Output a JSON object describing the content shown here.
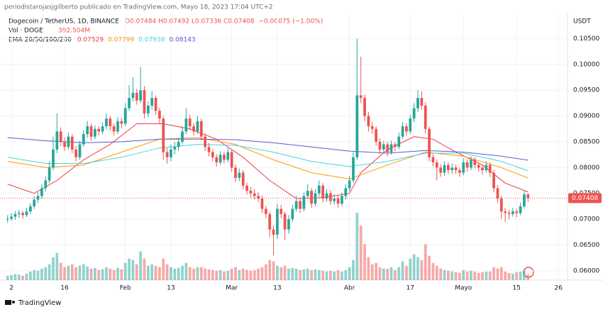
{
  "header": {
    "publisher": "periodistarojasjgilberto publicado en TradingView.com, Mayo 18, 2023 17:04 UTC+2"
  },
  "footer": {
    "brand": "TradingView"
  },
  "chart_data": {
    "type": "candlestick",
    "title": "Dogecoin / TetherUS, 1D, BINANCE",
    "ohlc_label": "O0.07484 H0.07492 L0.07336 C0.07408",
    "change_label": "−0.00075 (−1.00%)",
    "y_unit": "USDT",
    "up_color": "#26a69a",
    "down_color": "#ef5350",
    "x": [
      0,
      1,
      2,
      3,
      4,
      5,
      6,
      7,
      8,
      9,
      10,
      11,
      12,
      13,
      14,
      15,
      16,
      17,
      18,
      19,
      20,
      21,
      22,
      23,
      24,
      25,
      26,
      27,
      28,
      29,
      30,
      31,
      32,
      33,
      34,
      35,
      36,
      37,
      38,
      39,
      40,
      41,
      42,
      43,
      44,
      45,
      46,
      47,
      48,
      49,
      50,
      51,
      52,
      53,
      54,
      55,
      56,
      57,
      58,
      59,
      60,
      61,
      62,
      63,
      64,
      65,
      66,
      67,
      68,
      69,
      70,
      71,
      72,
      73,
      74,
      75,
      76,
      77,
      78,
      79,
      80,
      81,
      82,
      83,
      84,
      85,
      86,
      87,
      88,
      89,
      90,
      91,
      92,
      93,
      94,
      95,
      96,
      97,
      98,
      99,
      100,
      101,
      102,
      103,
      104,
      105,
      106,
      107,
      108,
      109,
      110,
      111,
      112,
      113,
      114,
      115,
      116,
      117,
      118,
      119,
      120,
      121,
      122,
      123,
      124,
      125,
      126,
      127,
      128,
      129,
      130,
      131,
      132,
      133,
      134,
      135,
      136,
      137
    ],
    "candles": [
      [
        0.07,
        0.0708,
        0.0693,
        0.0701
      ],
      [
        0.0701,
        0.0712,
        0.0697,
        0.0705
      ],
      [
        0.0705,
        0.0716,
        0.0699,
        0.071
      ],
      [
        0.071,
        0.0718,
        0.0703,
        0.0712
      ],
      [
        0.0712,
        0.0716,
        0.0701,
        0.0708
      ],
      [
        0.0708,
        0.0722,
        0.0704,
        0.0715
      ],
      [
        0.0715,
        0.0731,
        0.071,
        0.0725
      ],
      [
        0.0725,
        0.0744,
        0.072,
        0.0738
      ],
      [
        0.0738,
        0.0752,
        0.0732,
        0.0745
      ],
      [
        0.0745,
        0.0768,
        0.074,
        0.076
      ],
      [
        0.076,
        0.0783,
        0.0754,
        0.0775
      ],
      [
        0.0775,
        0.0812,
        0.077,
        0.08
      ],
      [
        0.08,
        0.086,
        0.0795,
        0.0835
      ],
      [
        0.0835,
        0.0905,
        0.0828,
        0.087
      ],
      [
        0.087,
        0.0878,
        0.0842,
        0.085
      ],
      [
        0.085,
        0.0858,
        0.0832,
        0.084
      ],
      [
        0.084,
        0.0868,
        0.0835,
        0.086
      ],
      [
        0.086,
        0.0865,
        0.0828,
        0.0835
      ],
      [
        0.0835,
        0.0842,
        0.0812,
        0.082
      ],
      [
        0.082,
        0.0852,
        0.0815,
        0.0845
      ],
      [
        0.0845,
        0.0873,
        0.084,
        0.0865
      ],
      [
        0.0865,
        0.089,
        0.0858,
        0.088
      ],
      [
        0.088,
        0.0885,
        0.0852,
        0.086
      ],
      [
        0.086,
        0.0882,
        0.0855,
        0.0875
      ],
      [
        0.0875,
        0.088,
        0.0862,
        0.087
      ],
      [
        0.087,
        0.0888,
        0.0865,
        0.088
      ],
      [
        0.088,
        0.0905,
        0.0874,
        0.0895
      ],
      [
        0.0895,
        0.09,
        0.0872,
        0.088
      ],
      [
        0.088,
        0.0886,
        0.0862,
        0.087
      ],
      [
        0.087,
        0.0898,
        0.0865,
        0.089
      ],
      [
        0.089,
        0.0896,
        0.0876,
        0.0885
      ],
      [
        0.0885,
        0.0925,
        0.088,
        0.0915
      ],
      [
        0.0915,
        0.096,
        0.091,
        0.0935
      ],
      [
        0.0935,
        0.0975,
        0.0928,
        0.0945
      ],
      [
        0.0945,
        0.0952,
        0.0922,
        0.093
      ],
      [
        0.093,
        0.0995,
        0.0925,
        0.095
      ],
      [
        0.095,
        0.0958,
        0.0895,
        0.0905
      ],
      [
        0.0905,
        0.0928,
        0.0898,
        0.092
      ],
      [
        0.092,
        0.0948,
        0.0912,
        0.0935
      ],
      [
        0.0935,
        0.094,
        0.0902,
        0.091
      ],
      [
        0.091,
        0.0916,
        0.0885,
        0.0895
      ],
      [
        0.0895,
        0.09,
        0.0815,
        0.083
      ],
      [
        0.083,
        0.0838,
        0.0808,
        0.082
      ],
      [
        0.082,
        0.0845,
        0.0812,
        0.0835
      ],
      [
        0.0835,
        0.085,
        0.0826,
        0.084
      ],
      [
        0.084,
        0.0858,
        0.0832,
        0.085
      ],
      [
        0.085,
        0.088,
        0.0845,
        0.087
      ],
      [
        0.087,
        0.0915,
        0.0865,
        0.0895
      ],
      [
        0.0895,
        0.0902,
        0.0872,
        0.088
      ],
      [
        0.088,
        0.0886,
        0.0862,
        0.087
      ],
      [
        0.087,
        0.09,
        0.0865,
        0.089
      ],
      [
        0.089,
        0.0895,
        0.0852,
        0.086
      ],
      [
        0.086,
        0.0866,
        0.0832,
        0.084
      ],
      [
        0.084,
        0.0848,
        0.0822,
        0.083
      ],
      [
        0.083,
        0.0836,
        0.0812,
        0.082
      ],
      [
        0.082,
        0.0826,
        0.0802,
        0.081
      ],
      [
        0.081,
        0.0832,
        0.0805,
        0.0825
      ],
      [
        0.0825,
        0.083,
        0.0808,
        0.0815
      ],
      [
        0.0815,
        0.0838,
        0.081,
        0.083
      ],
      [
        0.083,
        0.0835,
        0.0792,
        0.08
      ],
      [
        0.08,
        0.0806,
        0.0772,
        0.078
      ],
      [
        0.078,
        0.0798,
        0.0774,
        0.079
      ],
      [
        0.079,
        0.0795,
        0.0758,
        0.0765
      ],
      [
        0.0765,
        0.077,
        0.0748,
        0.0755
      ],
      [
        0.0755,
        0.0762,
        0.0742,
        0.075
      ],
      [
        0.075,
        0.0758,
        0.0738,
        0.0745
      ],
      [
        0.0745,
        0.0752,
        0.0733,
        0.074
      ],
      [
        0.074,
        0.0746,
        0.0712,
        0.072
      ],
      [
        0.072,
        0.0726,
        0.0702,
        0.071
      ],
      [
        0.071,
        0.0715,
        0.0665,
        0.068
      ],
      [
        0.068,
        0.0688,
        0.063,
        0.067
      ],
      [
        0.067,
        0.073,
        0.0662,
        0.072
      ],
      [
        0.072,
        0.0728,
        0.0702,
        0.071
      ],
      [
        0.071,
        0.0715,
        0.066,
        0.068
      ],
      [
        0.068,
        0.0708,
        0.0672,
        0.07
      ],
      [
        0.07,
        0.0728,
        0.0694,
        0.072
      ],
      [
        0.072,
        0.0745,
        0.0714,
        0.0735
      ],
      [
        0.0735,
        0.074,
        0.0712,
        0.072
      ],
      [
        0.072,
        0.0752,
        0.0715,
        0.0745
      ],
      [
        0.0745,
        0.0768,
        0.074,
        0.0755
      ],
      [
        0.0755,
        0.076,
        0.0722,
        0.073
      ],
      [
        0.073,
        0.0758,
        0.0725,
        0.075
      ],
      [
        0.075,
        0.0775,
        0.0744,
        0.0765
      ],
      [
        0.0765,
        0.077,
        0.0732,
        0.074
      ],
      [
        0.074,
        0.0758,
        0.0734,
        0.075
      ],
      [
        0.075,
        0.0756,
        0.0728,
        0.0735
      ],
      [
        0.0735,
        0.0748,
        0.0728,
        0.074
      ],
      [
        0.074,
        0.0746,
        0.0722,
        0.073
      ],
      [
        0.073,
        0.0752,
        0.0725,
        0.0745
      ],
      [
        0.0745,
        0.0768,
        0.0738,
        0.076
      ],
      [
        0.076,
        0.0784,
        0.0754,
        0.0775
      ],
      [
        0.0775,
        0.083,
        0.077,
        0.082
      ],
      [
        0.082,
        0.105,
        0.0815,
        0.094
      ],
      [
        0.094,
        0.1015,
        0.0925,
        0.0935
      ],
      [
        0.0935,
        0.0942,
        0.089,
        0.09
      ],
      [
        0.09,
        0.0908,
        0.087,
        0.088
      ],
      [
        0.088,
        0.0888,
        0.0866,
        0.0875
      ],
      [
        0.0875,
        0.088,
        0.0842,
        0.085
      ],
      [
        0.085,
        0.0856,
        0.0826,
        0.0835
      ],
      [
        0.0835,
        0.0852,
        0.0828,
        0.0845
      ],
      [
        0.0845,
        0.085,
        0.0822,
        0.083
      ],
      [
        0.083,
        0.0852,
        0.0825,
        0.0845
      ],
      [
        0.0845,
        0.085,
        0.0832,
        0.084
      ],
      [
        0.084,
        0.0868,
        0.0835,
        0.086
      ],
      [
        0.086,
        0.0888,
        0.0855,
        0.088
      ],
      [
        0.088,
        0.0886,
        0.0862,
        0.087
      ],
      [
        0.087,
        0.0902,
        0.0865,
        0.0895
      ],
      [
        0.0895,
        0.0925,
        0.0888,
        0.0915
      ],
      [
        0.0915,
        0.095,
        0.0908,
        0.0935
      ],
      [
        0.0935,
        0.0948,
        0.0912,
        0.092
      ],
      [
        0.092,
        0.0926,
        0.0866,
        0.0875
      ],
      [
        0.0875,
        0.088,
        0.0812,
        0.082
      ],
      [
        0.082,
        0.0826,
        0.0802,
        0.081
      ],
      [
        0.081,
        0.0816,
        0.0775,
        0.08
      ],
      [
        0.08,
        0.0806,
        0.0782,
        0.079
      ],
      [
        0.079,
        0.0812,
        0.0784,
        0.0805
      ],
      [
        0.0805,
        0.081,
        0.0787,
        0.0795
      ],
      [
        0.0795,
        0.0808,
        0.0788,
        0.08
      ],
      [
        0.08,
        0.0806,
        0.0788,
        0.0795
      ],
      [
        0.0795,
        0.08,
        0.0782,
        0.079
      ],
      [
        0.079,
        0.0818,
        0.0785,
        0.081
      ],
      [
        0.081,
        0.0815,
        0.0792,
        0.08
      ],
      [
        0.08,
        0.0822,
        0.0795,
        0.0815
      ],
      [
        0.0815,
        0.082,
        0.0798,
        0.0805
      ],
      [
        0.0805,
        0.081,
        0.0792,
        0.08
      ],
      [
        0.08,
        0.0806,
        0.0786,
        0.0795
      ],
      [
        0.0795,
        0.0812,
        0.079,
        0.0805
      ],
      [
        0.0805,
        0.081,
        0.0782,
        0.079
      ],
      [
        0.079,
        0.0796,
        0.0752,
        0.076
      ],
      [
        0.076,
        0.0766,
        0.0732,
        0.074
      ],
      [
        0.074,
        0.0746,
        0.07,
        0.0715
      ],
      [
        0.0715,
        0.0722,
        0.0695,
        0.0712
      ],
      [
        0.0712,
        0.0718,
        0.07,
        0.071
      ],
      [
        0.071,
        0.0722,
        0.0705,
        0.0715
      ],
      [
        0.0715,
        0.072,
        0.0704,
        0.0712
      ],
      [
        0.0712,
        0.0732,
        0.0708,
        0.0725
      ],
      [
        0.0725,
        0.0755,
        0.072,
        0.0748
      ],
      [
        0.07484,
        0.07492,
        0.07336,
        0.07408
      ]
    ],
    "volume": {
      "label": "Vol · DOGE",
      "value_label": "392.504M",
      "values": [
        300,
        350,
        420,
        380,
        300,
        450,
        600,
        700,
        650,
        800,
        900,
        1100,
        1600,
        1900,
        1200,
        900,
        1000,
        1100,
        900,
        1000,
        1100,
        950,
        800,
        850,
        700,
        750,
        900,
        800,
        700,
        850,
        750,
        1200,
        1500,
        1400,
        1100,
        2000,
        1500,
        1000,
        1100,
        1000,
        900,
        1500,
        1100,
        900,
        800,
        850,
        1000,
        1200,
        900,
        800,
        900,
        900,
        800,
        750,
        700,
        650,
        700,
        600,
        650,
        800,
        900,
        700,
        800,
        700,
        650,
        700,
        800,
        900,
        1100,
        1400,
        1300,
        1000,
        900,
        1000,
        800,
        850,
        800,
        700,
        750,
        800,
        700,
        750,
        700,
        650,
        600,
        650,
        600,
        700,
        600,
        700,
        900,
        1400,
        4700,
        3800,
        2500,
        1600,
        1100,
        1200,
        900,
        800,
        800,
        900,
        700,
        900,
        1300,
        1000,
        1500,
        1800,
        1600,
        1400,
        2500,
        1700,
        1200,
        1000,
        800,
        700,
        650,
        600,
        550,
        500,
        700,
        600,
        650,
        600,
        500,
        550,
        600,
        600,
        900,
        800,
        900,
        600,
        500,
        450,
        550,
        600,
        700,
        392.504
      ]
    },
    "ema_label": "EMA 20/50/100/200",
    "ema": [
      {
        "color": "#f23645",
        "legend_value": "0.07529",
        "x": [
          0,
          7,
          13,
          20,
          27,
          34,
          41,
          48,
          55,
          62,
          69,
          76,
          83,
          90,
          93,
          100,
          107,
          112,
          118,
          125,
          131,
          137
        ],
        "values": [
          0.0768,
          0.075,
          0.0775,
          0.0815,
          0.0845,
          0.0885,
          0.0885,
          0.0875,
          0.0855,
          0.082,
          0.0775,
          0.074,
          0.0742,
          0.075,
          0.079,
          0.0835,
          0.086,
          0.0855,
          0.083,
          0.0805,
          0.077,
          0.07529
        ]
      },
      {
        "color": "#ff9800",
        "legend_value": "0.07799",
        "x": [
          0,
          10,
          20,
          30,
          40,
          50,
          60,
          70,
          80,
          90,
          100,
          110,
          120,
          130,
          137
        ],
        "values": [
          0.0812,
          0.08,
          0.0805,
          0.083,
          0.0855,
          0.0858,
          0.0845,
          0.0815,
          0.079,
          0.0778,
          0.0805,
          0.083,
          0.0822,
          0.08,
          0.07799
        ]
      },
      {
        "color": "#4dd0e1",
        "legend_value": "0.07938",
        "x": [
          0,
          10,
          20,
          30,
          40,
          50,
          60,
          70,
          80,
          90,
          100,
          110,
          120,
          130,
          137
        ],
        "values": [
          0.082,
          0.0808,
          0.0808,
          0.082,
          0.0838,
          0.0845,
          0.0843,
          0.083,
          0.0812,
          0.0802,
          0.0812,
          0.0828,
          0.0828,
          0.0812,
          0.07938
        ]
      },
      {
        "color": "#5b5bd6",
        "legend_value": "0.08143",
        "x": [
          0,
          10,
          20,
          30,
          40,
          50,
          60,
          70,
          80,
          90,
          100,
          110,
          120,
          130,
          137
        ],
        "values": [
          0.0858,
          0.0852,
          0.0848,
          0.085,
          0.0855,
          0.0855,
          0.0854,
          0.0848,
          0.084,
          0.0832,
          0.0828,
          0.0833,
          0.083,
          0.0822,
          0.08143
        ]
      }
    ],
    "xlim": [
      -2,
      147.4
    ],
    "xticks": [
      {
        "value": 1,
        "label": "2"
      },
      {
        "value": 15,
        "label": "16"
      },
      {
        "value": 31,
        "label": "Feb"
      },
      {
        "value": 43,
        "label": "13"
      },
      {
        "value": 59,
        "label": "Mar"
      },
      {
        "value": 71,
        "label": "13"
      },
      {
        "value": 90,
        "label": "Abr"
      },
      {
        "value": 106,
        "label": "17"
      },
      {
        "value": 120,
        "label": "Mayo"
      },
      {
        "value": 134,
        "label": "15"
      },
      {
        "value": 145,
        "label": "26"
      }
    ],
    "ylim": [
      0.0582,
      0.11
    ],
    "yticks": [
      {
        "value": 0.06,
        "label": "0.06000"
      },
      {
        "value": 0.065,
        "label": "0.06500"
      },
      {
        "value": 0.07,
        "label": "0.07000"
      },
      {
        "value": 0.075,
        "label": "0.07500"
      },
      {
        "value": 0.08,
        "label": "0.08000"
      },
      {
        "value": 0.085,
        "label": "0.08500"
      },
      {
        "value": 0.09,
        "label": "0.09000"
      },
      {
        "value": 0.095,
        "label": "0.09500"
      },
      {
        "value": 0.1,
        "label": "0.10000"
      },
      {
        "value": 0.105,
        "label": "0.10500"
      }
    ]
  }
}
